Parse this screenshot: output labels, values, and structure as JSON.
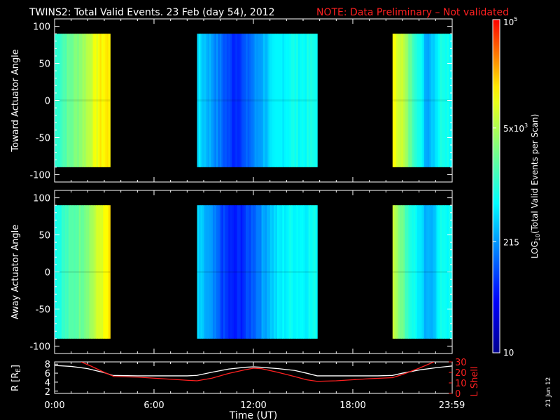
{
  "header": {
    "title": "TWINS2: Total Valid Events. 23 Feb (day  54), 2012",
    "note": "NOTE: Data Preliminary – Not validated"
  },
  "footer": {
    "date_stamp": "21 Jun 12"
  },
  "colors": {
    "background": "#000000",
    "axis": "#ffffff",
    "note": "#ff2020",
    "r_line": "#ffffff",
    "l_shell_line": "#ff2020"
  },
  "colorbar": {
    "label": "LOG10(Total Valid Events per Scan)",
    "label_main": "LOG",
    "label_sub": "10",
    "label_rest": "(Total Valid Events per Scan)",
    "ticks": [
      {
        "value": 10,
        "label": "10"
      },
      {
        "value": 215,
        "label": "215"
      },
      {
        "value": 5000,
        "label": "5x10",
        "sup": "3"
      },
      {
        "value": 100000,
        "label": "10",
        "sup": "5"
      }
    ],
    "range": [
      10,
      100000
    ],
    "scale": "log",
    "colormap": [
      "#000090",
      "#0000ff",
      "#00ffff",
      "#ffff00",
      "#ff0000"
    ]
  },
  "chart_data": [
    {
      "type": "heatmap",
      "ylabel": "Toward Actuator Angle",
      "ylim": [
        -110,
        110
      ],
      "yticks": [
        -100,
        -50,
        0,
        50,
        100
      ],
      "x_unit": "hours UT",
      "xlim": [
        0,
        24
      ],
      "angle_range": [
        -90,
        90
      ],
      "data_intervals": [
        {
          "start": 0.0,
          "end": 3.35,
          "profile": "warm",
          "levels": [
            0.5,
            0.56,
            0.6,
            0.65,
            0.72,
            0.78,
            0.8
          ]
        },
        {
          "start": 8.6,
          "end": 15.85,
          "profile": "cool",
          "levels": [
            0.42,
            0.36,
            0.28,
            0.21,
            0.25,
            0.33,
            0.4,
            0.44,
            0.47,
            0.46,
            0.48
          ]
        },
        {
          "start": 20.4,
          "end": 24.0,
          "profile": "mixed",
          "levels": [
            0.76,
            0.72,
            0.58,
            0.5,
            0.35,
            0.42,
            0.5,
            0.46
          ]
        }
      ]
    },
    {
      "type": "heatmap",
      "ylabel": "Away Actuator Angle",
      "ylim": [
        -110,
        110
      ],
      "yticks": [
        -100,
        -50,
        0,
        50,
        100
      ],
      "x_unit": "hours UT",
      "xlim": [
        0,
        24
      ],
      "angle_range": [
        -90,
        90
      ],
      "data_intervals": [
        {
          "start": 0.0,
          "end": 3.35,
          "profile": "warm",
          "levels": [
            0.48,
            0.52,
            0.56,
            0.6,
            0.66,
            0.74,
            0.79
          ]
        },
        {
          "start": 8.6,
          "end": 15.85,
          "profile": "cool",
          "levels": [
            0.4,
            0.33,
            0.24,
            0.18,
            0.22,
            0.3,
            0.38,
            0.43,
            0.46,
            0.45,
            0.47
          ]
        },
        {
          "start": 20.4,
          "end": 24.0,
          "profile": "mixed",
          "levels": [
            0.72,
            0.6,
            0.5,
            0.44,
            0.34,
            0.4,
            0.48,
            0.45
          ]
        }
      ]
    },
    {
      "type": "line",
      "xlabel": "Time (UT)",
      "xticks": [
        {
          "value": 0,
          "label": "0:00"
        },
        {
          "value": 6,
          "label": "6:00"
        },
        {
          "value": 12,
          "label": "12:00"
        },
        {
          "value": 18,
          "label": "18:00"
        },
        {
          "value": 23.98,
          "label": "23:59"
        }
      ],
      "xlim": [
        0,
        24
      ],
      "left_axis": {
        "label_main": "R [R",
        "label_sub": "E",
        "label_end": "]",
        "ylim": [
          1.5,
          8.5
        ],
        "ticks": [
          2,
          4,
          6,
          8
        ]
      },
      "right_axis": {
        "label": "L Shell",
        "ylim": [
          0,
          30
        ],
        "ticks": [
          0,
          10,
          20,
          30
        ]
      },
      "series": [
        {
          "axis": "left",
          "color": "#ffffff",
          "x": [
            0,
            1,
            2,
            3,
            3.5,
            5,
            6,
            7,
            8,
            8.6,
            9.5,
            10.5,
            11.5,
            12,
            12.5,
            13.5,
            14.5,
            15.2,
            15.85,
            16.5,
            17.5,
            18.5,
            19.5,
            20.4,
            21,
            22,
            23,
            24
          ],
          "y": [
            7.7,
            7.5,
            7.0,
            6.1,
            5.5,
            5.4,
            5.4,
            5.4,
            5.4,
            5.5,
            6.2,
            6.9,
            7.3,
            7.4,
            7.3,
            7.0,
            6.6,
            6.0,
            5.4,
            5.4,
            5.4,
            5.4,
            5.4,
            5.5,
            6.0,
            6.7,
            7.2,
            7.6
          ]
        },
        {
          "axis": "right",
          "color": "#ff2020",
          "x": [
            1.6,
            2.2,
            3,
            3.6,
            5,
            6,
            7,
            8,
            8.6,
            9.5,
            10.5,
            11.5,
            12,
            12.5,
            13.5,
            14.5,
            15.2,
            15.85,
            17,
            18,
            19,
            20.4,
            21,
            22,
            22.9
          ],
          "y": [
            30,
            26,
            20,
            16,
            15.5,
            14.5,
            13.5,
            12.5,
            12,
            14.5,
            19,
            22.5,
            24,
            23.5,
            20,
            16,
            13,
            11.5,
            12,
            13,
            14,
            15,
            18,
            24,
            30
          ]
        }
      ]
    }
  ]
}
